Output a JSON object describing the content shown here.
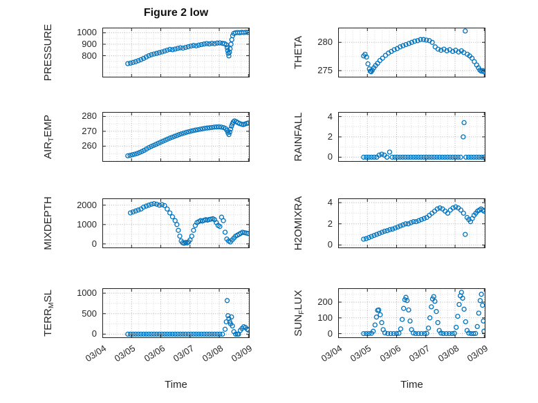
{
  "figure": {
    "title": "Figure 2 low",
    "xlabel": "Time",
    "background": "#ffffff",
    "marker_color": "#0072BD",
    "axis_color": "#1f1f1f",
    "grid_major_color": "#b0b0b0",
    "grid_minor_color": "#d8d8d8",
    "x_axis": {
      "xlim": [
        4,
        9.04
      ],
      "ticks": [
        4,
        5,
        6,
        7,
        8,
        9
      ],
      "tick_labels": [
        "03/04",
        "03/05",
        "03/06",
        "03/07",
        "03/08",
        "03/09"
      ],
      "minor_step": 0.25
    }
  },
  "chart_data": [
    {
      "type": "scatter",
      "panel": "pressure",
      "ylabel": "PRESSURE",
      "ylabel_parts": [
        {
          "t": "PRESSURE"
        }
      ],
      "col": 0,
      "row": 0,
      "ylim": [
        610,
        1045
      ],
      "yticks": [
        800,
        900,
        1000
      ],
      "x": [
        4.87,
        4.96,
        5.05,
        5.14,
        5.23,
        5.32,
        5.41,
        5.5,
        5.59,
        5.68,
        5.77,
        5.86,
        5.95,
        6.04,
        6.13,
        6.22,
        6.31,
        6.4,
        6.49,
        6.58,
        6.67,
        6.76,
        6.85,
        6.94,
        7.03,
        7.12,
        7.21,
        7.3,
        7.39,
        7.48,
        7.57,
        7.66,
        7.75,
        7.84,
        7.93,
        8.02,
        8.11,
        8.18,
        8.24,
        8.27,
        8.29,
        8.31,
        8.33,
        8.35,
        8.37,
        8.4,
        8.43,
        8.46,
        8.5,
        8.56,
        8.63,
        8.7,
        8.77,
        8.84,
        8.91,
        8.98
      ],
      "y": [
        731,
        735,
        741,
        748,
        756,
        765,
        776,
        788,
        800,
        808,
        815,
        820,
        826,
        833,
        840,
        848,
        855,
        852,
        858,
        864,
        869,
        866,
        872,
        878,
        884,
        889,
        886,
        892,
        897,
        902,
        906,
        903,
        908,
        905,
        910,
        912,
        908,
        905,
        895,
        870,
        845,
        820,
        798,
        830,
        860,
        900,
        940,
        975,
        995,
        1000,
        1003,
        1001,
        1004,
        1002,
        1005,
        1003
      ]
    },
    {
      "type": "scatter",
      "panel": "theta",
      "ylabel": "THETA",
      "ylabel_parts": [
        {
          "t": "THETA"
        }
      ],
      "col": 1,
      "row": 0,
      "ylim": [
        273.8,
        282.6
      ],
      "yticks": [
        275,
        280
      ],
      "x": [
        4.87,
        4.92,
        4.97,
        5.02,
        5.07,
        5.1,
        5.13,
        5.17,
        5.22,
        5.28,
        5.35,
        5.43,
        5.52,
        5.62,
        5.72,
        5.82,
        5.92,
        6.02,
        6.12,
        6.22,
        6.32,
        6.42,
        6.52,
        6.62,
        6.72,
        6.82,
        6.92,
        7.02,
        7.12,
        7.22,
        7.32,
        7.42,
        7.52,
        7.62,
        7.72,
        7.82,
        7.92,
        8.02,
        8.12,
        8.22,
        8.3,
        8.35,
        8.42,
        8.5,
        8.58,
        8.66,
        8.74,
        8.8,
        8.85,
        8.9,
        8.95,
        8.99
      ],
      "y": [
        277.6,
        277.9,
        277.4,
        276.2,
        275.3,
        274.9,
        274.8,
        275.1,
        275.5,
        275.9,
        276.3,
        276.8,
        277.2,
        277.7,
        278.1,
        278.4,
        278.7,
        278.9,
        279.2,
        279.4,
        279.6,
        279.8,
        280.0,
        280.2,
        280.3,
        280.5,
        280.5,
        280.4,
        280.3,
        280.0,
        279.2,
        278.8,
        278.6,
        278.8,
        278.5,
        278.7,
        278.4,
        278.6,
        278.3,
        278.5,
        278.2,
        282.0,
        277.9,
        277.6,
        277.2,
        276.6,
        276.0,
        275.5,
        275.1,
        274.9,
        275.0,
        274.8
      ]
    },
    {
      "type": "scatter",
      "panel": "air-temp",
      "ylabel": "AIR_TEMP",
      "ylabel_parts": [
        {
          "t": "AIR"
        },
        {
          "t": "T",
          "sub": true
        },
        {
          "t": "EMP"
        }
      ],
      "col": 0,
      "row": 1,
      "ylim": [
        249.5,
        283
      ],
      "yticks": [
        260,
        270,
        280
      ],
      "x": [
        4.87,
        4.95,
        5.03,
        5.11,
        5.19,
        5.27,
        5.35,
        5.43,
        5.51,
        5.59,
        5.67,
        5.75,
        5.83,
        5.91,
        5.99,
        6.07,
        6.15,
        6.23,
        6.31,
        6.39,
        6.47,
        6.55,
        6.63,
        6.71,
        6.79,
        6.87,
        6.95,
        7.03,
        7.11,
        7.19,
        7.27,
        7.35,
        7.43,
        7.51,
        7.59,
        7.67,
        7.75,
        7.83,
        7.91,
        7.99,
        8.07,
        8.15,
        8.22,
        8.27,
        8.3,
        8.33,
        8.36,
        8.39,
        8.42,
        8.45,
        8.48,
        8.52,
        8.58,
        8.64,
        8.7,
        8.76,
        8.82,
        8.88,
        8.94,
        8.99
      ],
      "y": [
        253.5,
        253.8,
        254.2,
        254.6,
        255.1,
        255.7,
        256.4,
        257.2,
        258.1,
        259.0,
        259.8,
        260.5,
        261.2,
        261.9,
        262.6,
        263.3,
        264.0,
        264.7,
        265.4,
        266.0,
        266.6,
        267.2,
        267.8,
        268.3,
        268.8,
        269.3,
        269.7,
        270.1,
        270.5,
        270.8,
        271.1,
        271.4,
        271.7,
        272.0,
        272.2,
        272.4,
        272.6,
        272.8,
        272.9,
        273.0,
        272.8,
        272.5,
        271.8,
        270.5,
        269.0,
        267.8,
        269.5,
        271.5,
        273.5,
        275.0,
        276.2,
        277.0,
        276.5,
        275.8,
        275.2,
        274.8,
        274.5,
        274.9,
        275.3,
        275.6
      ]
    },
    {
      "type": "scatter",
      "panel": "rainfall",
      "ylabel": "RAINFALL",
      "ylabel_parts": [
        {
          "t": "RAINFALL"
        }
      ],
      "col": 1,
      "row": 1,
      "ylim": [
        -0.45,
        4.45
      ],
      "yticks": [
        0,
        2,
        4
      ],
      "x": [
        4.87,
        4.96,
        5.05,
        5.14,
        5.23,
        5.32,
        5.4,
        5.49,
        5.58,
        5.67,
        5.76,
        5.85,
        5.94,
        6.03,
        6.12,
        6.21,
        6.3,
        6.39,
        6.48,
        6.57,
        6.66,
        6.75,
        6.84,
        6.93,
        7.02,
        7.11,
        7.2,
        7.29,
        7.38,
        7.47,
        7.56,
        7.65,
        7.74,
        7.83,
        7.92,
        8.01,
        8.1,
        8.19,
        8.28,
        8.31,
        8.37,
        8.46,
        8.55,
        8.64,
        8.73,
        8.82,
        8.91,
        8.99
      ],
      "y": [
        0,
        0,
        0,
        0,
        0,
        0,
        0.2,
        0.3,
        0.2,
        0,
        0.5,
        0,
        0,
        0,
        0,
        0,
        0,
        0,
        0,
        0,
        0,
        0,
        0,
        0,
        0,
        0,
        0,
        0,
        0,
        0,
        0,
        0,
        0,
        0,
        0,
        0,
        0,
        0,
        2.0,
        3.4,
        0,
        0,
        0,
        0,
        0,
        0,
        0,
        0
      ]
    },
    {
      "type": "scatter",
      "panel": "mixdepth",
      "ylabel": "MIXDEPTH",
      "ylabel_parts": [
        {
          "t": "MIXDEPTH"
        }
      ],
      "col": 0,
      "row": 2,
      "ylim": [
        -220,
        2350
      ],
      "yticks": [
        0,
        1000,
        2000
      ],
      "x": [
        4.96,
        5.05,
        5.14,
        5.23,
        5.32,
        5.41,
        5.5,
        5.59,
        5.68,
        5.77,
        5.86,
        5.95,
        6.04,
        6.13,
        6.22,
        6.31,
        6.4,
        6.49,
        6.55,
        6.6,
        6.65,
        6.7,
        6.75,
        6.8,
        6.85,
        6.9,
        6.95,
        7.0,
        7.06,
        7.12,
        7.18,
        7.24,
        7.3,
        7.36,
        7.42,
        7.48,
        7.54,
        7.6,
        7.66,
        7.72,
        7.78,
        7.84,
        7.9,
        7.96,
        8.02,
        8.08,
        8.14,
        8.2,
        8.26,
        8.32,
        8.38,
        8.44,
        8.5,
        8.56,
        8.62,
        8.68,
        8.74,
        8.8,
        8.86,
        8.92,
        8.98
      ],
      "y": [
        1600,
        1650,
        1700,
        1750,
        1800,
        1900,
        1950,
        2000,
        2050,
        2080,
        2050,
        2000,
        2030,
        1980,
        1800,
        1600,
        1400,
        1200,
        1000,
        700,
        400,
        150,
        60,
        30,
        80,
        50,
        100,
        200,
        400,
        700,
        950,
        1100,
        1150,
        1200,
        1180,
        1220,
        1250,
        1230,
        1260,
        1280,
        1300,
        1250,
        1100,
        950,
        900,
        1380,
        1200,
        600,
        250,
        150,
        100,
        200,
        300,
        400,
        450,
        500,
        550,
        600,
        580,
        560,
        540
      ]
    },
    {
      "type": "scatter",
      "panel": "h2omixra",
      "ylabel": "H2OMIXRA",
      "ylabel_parts": [
        {
          "t": "H2OMIXRA"
        }
      ],
      "col": 1,
      "row": 2,
      "ylim": [
        -0.3,
        4.4
      ],
      "yticks": [
        0,
        2,
        4
      ],
      "x": [
        4.87,
        4.96,
        5.05,
        5.14,
        5.23,
        5.32,
        5.41,
        5.5,
        5.59,
        5.68,
        5.77,
        5.86,
        5.95,
        6.04,
        6.13,
        6.22,
        6.31,
        6.4,
        6.49,
        6.58,
        6.67,
        6.76,
        6.85,
        6.94,
        7.03,
        7.12,
        7.21,
        7.3,
        7.39,
        7.48,
        7.57,
        7.66,
        7.75,
        7.84,
        7.93,
        8.02,
        8.11,
        8.2,
        8.29,
        8.35,
        8.41,
        8.47,
        8.53,
        8.59,
        8.65,
        8.71,
        8.77,
        8.83,
        8.89,
        8.95,
        8.99
      ],
      "y": [
        0.55,
        0.6,
        0.7,
        0.8,
        0.9,
        1.0,
        1.1,
        1.2,
        1.3,
        1.35,
        1.45,
        1.5,
        1.6,
        1.7,
        1.8,
        1.9,
        2.0,
        2.0,
        2.1,
        2.2,
        2.2,
        2.3,
        2.4,
        2.5,
        2.6,
        2.8,
        3.0,
        3.2,
        3.4,
        3.5,
        3.4,
        3.2,
        3.0,
        3.3,
        3.5,
        3.6,
        3.5,
        3.3,
        3.0,
        1.0,
        2.6,
        2.4,
        2.2,
        2.5,
        2.8,
        3.0,
        3.2,
        3.3,
        3.4,
        3.3,
        3.2
      ]
    },
    {
      "type": "scatter",
      "panel": "terr-msl",
      "ylabel": "TERR_MSL",
      "ylabel_parts": [
        {
          "t": "TERR"
        },
        {
          "t": "M",
          "sub": true
        },
        {
          "t": "SL"
        }
      ],
      "col": 0,
      "row": 3,
      "ylim": [
        -95,
        1120
      ],
      "yticks": [
        0,
        500,
        1000
      ],
      "x": [
        4.87,
        4.96,
        5.05,
        5.14,
        5.23,
        5.32,
        5.41,
        5.5,
        5.59,
        5.68,
        5.77,
        5.86,
        5.95,
        6.04,
        6.13,
        6.22,
        6.31,
        6.4,
        6.49,
        6.58,
        6.67,
        6.76,
        6.85,
        6.94,
        7.03,
        7.12,
        7.21,
        7.3,
        7.39,
        7.48,
        7.57,
        7.66,
        7.75,
        7.84,
        7.93,
        8.02,
        8.11,
        8.2,
        8.24,
        8.27,
        8.3,
        8.33,
        8.36,
        8.39,
        8.42,
        8.45,
        8.5,
        8.56,
        8.62,
        8.66,
        8.72,
        8.78,
        8.84,
        8.9,
        8.96,
        8.99
      ],
      "y": [
        0,
        0,
        0,
        0,
        0,
        0,
        0,
        0,
        0,
        0,
        0,
        0,
        0,
        0,
        0,
        0,
        0,
        0,
        0,
        0,
        0,
        0,
        0,
        0,
        0,
        0,
        0,
        0,
        0,
        0,
        0,
        0,
        0,
        0,
        0,
        0,
        0,
        120,
        300,
        820,
        450,
        380,
        300,
        250,
        420,
        200,
        60,
        0,
        0,
        0,
        90,
        140,
        180,
        160,
        120,
        100
      ]
    },
    {
      "type": "scatter",
      "panel": "sun-flux",
      "ylabel": "SUN_FLUX",
      "ylabel_parts": [
        {
          "t": "SUN"
        },
        {
          "t": "F",
          "sub": true
        },
        {
          "t": "LUX"
        }
      ],
      "col": 1,
      "row": 3,
      "ylim": [
        -28,
        288
      ],
      "yticks": [
        0,
        100,
        200
      ],
      "x": [
        4.87,
        4.96,
        5.05,
        5.14,
        5.2,
        5.26,
        5.31,
        5.35,
        5.39,
        5.44,
        5.49,
        5.54,
        5.6,
        5.7,
        5.8,
        5.9,
        6.0,
        6.08,
        6.14,
        6.19,
        6.24,
        6.28,
        6.32,
        6.36,
        6.41,
        6.46,
        6.51,
        6.57,
        6.65,
        6.75,
        6.85,
        6.95,
        7.03,
        7.09,
        7.14,
        7.19,
        7.23,
        7.27,
        7.31,
        7.36,
        7.41,
        7.46,
        7.52,
        7.6,
        7.7,
        7.8,
        7.9,
        7.98,
        8.04,
        8.09,
        8.14,
        8.18,
        8.22,
        8.26,
        8.31,
        8.36,
        8.41,
        8.47,
        8.55,
        8.63,
        8.7,
        8.76,
        8.81,
        8.86,
        8.9,
        8.94,
        8.97,
        8.99
      ],
      "y": [
        0,
        0,
        0,
        2,
        15,
        55,
        105,
        148,
        150,
        120,
        70,
        25,
        5,
        0,
        0,
        0,
        0,
        2,
        30,
        90,
        160,
        215,
        230,
        210,
        150,
        80,
        25,
        4,
        0,
        0,
        0,
        0,
        2,
        35,
        100,
        170,
        220,
        235,
        205,
        140,
        70,
        20,
        3,
        0,
        0,
        0,
        0,
        2,
        40,
        110,
        185,
        240,
        262,
        225,
        155,
        75,
        20,
        3,
        0,
        0,
        1,
        45,
        130,
        210,
        250,
        180,
        80,
        15
      ]
    }
  ]
}
